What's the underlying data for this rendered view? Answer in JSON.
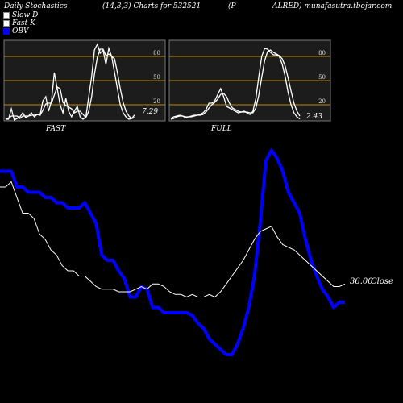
{
  "header": {
    "left": "Daily Stochastics",
    "params": "(14,3,3) Charts for 532521",
    "paren": "(P",
    "right": "ALRED) munafasutra.tbojar.com"
  },
  "legend": [
    {
      "label": "Slow  D",
      "color": "#ffffff"
    },
    {
      "label": "Fast K",
      "color": "#ffffff"
    },
    {
      "label": "OBV",
      "color": "#0000ff"
    }
  ],
  "colors": {
    "background": "#000000",
    "panel": "#1c1c1c",
    "level_lines": "#b8860b",
    "obv": "#0000ff",
    "price": "#ffffff"
  },
  "chart_data": [
    {
      "type": "line",
      "title": "FAST",
      "ylim": [
        0,
        100
      ],
      "y_ticks": [
        "80",
        "50",
        "20"
      ],
      "last_value_label": "7.29",
      "series": [
        {
          "name": "Fast K",
          "values": [
            2,
            2,
            15,
            1,
            3,
            5,
            10,
            4,
            6,
            10,
            5,
            8,
            7,
            25,
            30,
            12,
            25,
            60,
            40,
            20,
            10,
            28,
            12,
            5,
            12,
            18,
            5,
            2,
            5,
            30,
            55,
            88,
            95,
            84,
            88,
            70,
            90,
            80,
            60,
            40,
            20,
            10,
            5,
            2,
            3,
            7.29
          ]
        },
        {
          "name": "Slow  D",
          "values": [
            2,
            3,
            6,
            6,
            6,
            3,
            6,
            6,
            6,
            7,
            7,
            8,
            7,
            13,
            21,
            22,
            22,
            32,
            42,
            40,
            23,
            19,
            17,
            15,
            10,
            12,
            12,
            8,
            4,
            12,
            30,
            58,
            79,
            89,
            89,
            81,
            83,
            80,
            77,
            60,
            40,
            23,
            12,
            6,
            3,
            4
          ]
        }
      ]
    },
    {
      "type": "line",
      "title": "FULL",
      "ylim": [
        0,
        100
      ],
      "y_ticks": [
        "80",
        "50",
        "20"
      ],
      "last_value_label": "2.43",
      "series": [
        {
          "name": "Fast K",
          "values": [
            3,
            5,
            6,
            7,
            6,
            4,
            5,
            6,
            7,
            7,
            8,
            10,
            14,
            22,
            22,
            25,
            33,
            40,
            30,
            18,
            16,
            14,
            12,
            10,
            11,
            12,
            10,
            8,
            12,
            28,
            55,
            80,
            90,
            89,
            85,
            82,
            82,
            80,
            70,
            55,
            35,
            20,
            10,
            5,
            2.43
          ]
        },
        {
          "name": "Slow  D",
          "values": [
            2,
            3,
            5,
            6,
            6,
            5,
            5,
            5,
            6,
            7,
            7,
            8,
            11,
            16,
            20,
            23,
            27,
            33,
            34,
            30,
            22,
            16,
            14,
            12,
            11,
            11,
            11,
            10,
            10,
            16,
            32,
            54,
            75,
            86,
            88,
            85,
            83,
            81,
            77,
            68,
            53,
            37,
            22,
            12,
            6
          ]
        }
      ]
    },
    {
      "type": "line",
      "title": "",
      "last_value_label": "36.00",
      "last_value_suffix": "Close",
      "series": [
        {
          "name": "OBV",
          "values": [
            70,
            70,
            70,
            64,
            64,
            62,
            62,
            62,
            60,
            60,
            58,
            58,
            56,
            56,
            56,
            58,
            54,
            50,
            38,
            36,
            36,
            32,
            29,
            22,
            22,
            26,
            25,
            18,
            18,
            16,
            16,
            16,
            16,
            16,
            15,
            12,
            10,
            6,
            4,
            2,
            0,
            0,
            4,
            10,
            18,
            30,
            50,
            74,
            78,
            75,
            70,
            62,
            58,
            54,
            44,
            36,
            30,
            25,
            22,
            18,
            20,
            20
          ]
        },
        {
          "name": "Price",
          "values": [
            64,
            64,
            66,
            60,
            54,
            54,
            52,
            46,
            44,
            40,
            38,
            34,
            32,
            32,
            30,
            30,
            28,
            26,
            25,
            25,
            25,
            24,
            24,
            24,
            25,
            26,
            25,
            27,
            27,
            26,
            24,
            23,
            23,
            22,
            23,
            22,
            22,
            23,
            22,
            24,
            27,
            30,
            33,
            36,
            40,
            44,
            47,
            48,
            49,
            45,
            42,
            41,
            40,
            38,
            36,
            34,
            32,
            30,
            28,
            26,
            26,
            27
          ]
        }
      ]
    }
  ]
}
